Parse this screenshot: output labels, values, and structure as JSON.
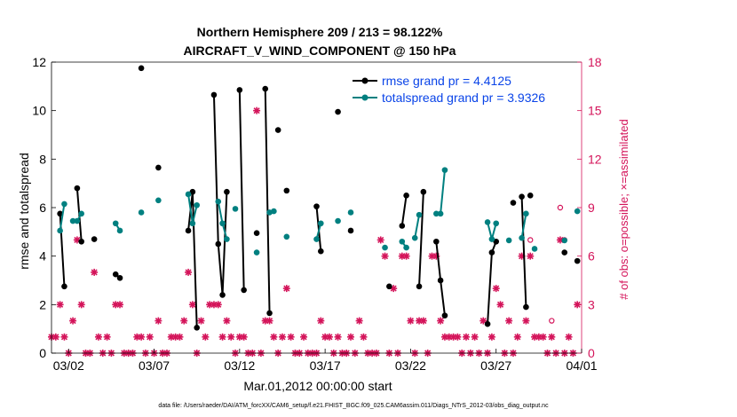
{
  "chart_data": {
    "type": "scatter",
    "title": "Northern Hemisphere 209 / 213 = 98.122%",
    "subtitle": "AIRCRAFT_V_WIND_COMPONENT @ 150 hPa",
    "xlabel": "Mar.01,2012 00:00:00 start",
    "ylabel": "rmse and totalspread",
    "y2label": "# of obs: o=possible; ×=assimilated",
    "footnote": "data file: /Users/raeder/DAI/ATM_forcXX/CAM6_setup/f.e21.FHIST_BGC.f09_025.CAM6assim.011/Diags_NTrS_2012-03/obs_diag_output.nc",
    "xlim": [
      0,
      31
    ],
    "ylim": [
      0,
      12
    ],
    "y2lim": [
      0,
      18
    ],
    "x_ticks": [
      {
        "value": 1,
        "label": "03/02"
      },
      {
        "value": 6,
        "label": "03/07"
      },
      {
        "value": 11,
        "label": "03/12"
      },
      {
        "value": 16,
        "label": "03/17"
      },
      {
        "value": 21,
        "label": "03/22"
      },
      {
        "value": 26,
        "label": "03/27"
      },
      {
        "value": 31,
        "label": "04/01"
      }
    ],
    "y_ticks": [
      0,
      2,
      4,
      6,
      8,
      10,
      12
    ],
    "y2_ticks": [
      0,
      3,
      6,
      9,
      12,
      15,
      18
    ],
    "grid": false,
    "legend_position": "top-right",
    "colors": {
      "rmse": "#000000",
      "spread": "#008080",
      "obs": "#d4145a"
    },
    "series": [
      {
        "name": "rmse grand pr = 4.4125",
        "segments": [
          [
            [
              0.5,
              5.75
            ],
            [
              0.75,
              2.75
            ]
          ],
          [
            [
              1.5,
              6.8
            ],
            [
              1.75,
              4.6
            ]
          ],
          [
            [
              2.5,
              4.7
            ]
          ],
          [
            [
              3.75,
              3.25
            ],
            [
              4.0,
              3.1
            ]
          ],
          [
            [
              5.25,
              11.75
            ]
          ],
          [
            [
              6.25,
              7.65
            ]
          ],
          [
            [
              8.0,
              5.05
            ],
            [
              8.25,
              6.65
            ],
            [
              8.5,
              1.05
            ]
          ],
          [
            [
              9.5,
              10.65
            ],
            [
              9.75,
              4.5
            ],
            [
              10.0,
              2.4
            ],
            [
              10.25,
              6.65
            ]
          ],
          [
            [
              11.0,
              10.85
            ],
            [
              11.25,
              2.6
            ]
          ],
          [
            [
              12.0,
              4.95
            ]
          ],
          [
            [
              12.5,
              10.9
            ],
            [
              12.75,
              1.65
            ]
          ],
          [
            [
              13.25,
              9.2
            ]
          ],
          [
            [
              13.75,
              6.7
            ]
          ],
          [
            [
              15.5,
              6.05
            ],
            [
              15.75,
              4.2
            ]
          ],
          [
            [
              16.75,
              9.95
            ]
          ],
          [
            [
              17.5,
              5.05
            ]
          ],
          [
            [
              19.75,
              2.75
            ]
          ],
          [
            [
              20.5,
              5.25
            ],
            [
              20.75,
              6.5
            ]
          ],
          [
            [
              21.5,
              2.75
            ],
            [
              21.75,
              6.65
            ]
          ],
          [
            [
              22.5,
              4.6
            ],
            [
              22.75,
              3.0
            ],
            [
              23.0,
              1.55
            ]
          ],
          [
            [
              25.5,
              1.2
            ],
            [
              25.75,
              4.15
            ],
            [
              26.0,
              4.6
            ]
          ],
          [
            [
              27.0,
              6.2
            ]
          ],
          [
            [
              27.5,
              6.45
            ],
            [
              27.75,
              1.9
            ]
          ],
          [
            [
              28.0,
              6.5
            ]
          ],
          [
            [
              30.0,
              4.15
            ]
          ],
          [
            [
              30.75,
              3.8
            ]
          ]
        ]
      },
      {
        "name": "totalspread grand pr = 3.9326",
        "segments": [
          [
            [
              0.5,
              5.05
            ],
            [
              0.75,
              6.15
            ]
          ],
          [
            [
              1.25,
              5.45
            ],
            [
              1.5,
              5.45
            ],
            [
              1.75,
              5.75
            ]
          ],
          [
            [
              3.75,
              5.35
            ],
            [
              4.0,
              5.05
            ]
          ],
          [
            [
              5.25,
              5.8
            ]
          ],
          [
            [
              6.25,
              6.3
            ]
          ],
          [
            [
              8.0,
              6.55
            ],
            [
              8.25,
              5.35
            ],
            [
              8.5,
              6.1
            ]
          ],
          [
            [
              9.75,
              6.25
            ],
            [
              10.0,
              5.35
            ],
            [
              10.25,
              4.7
            ]
          ],
          [
            [
              10.75,
              5.95
            ]
          ],
          [
            [
              12.0,
              4.15
            ]
          ],
          [
            [
              12.75,
              5.8
            ],
            [
              13.0,
              5.85
            ]
          ],
          [
            [
              13.75,
              4.8
            ]
          ],
          [
            [
              15.5,
              4.7
            ],
            [
              15.75,
              5.35
            ]
          ],
          [
            [
              16.75,
              5.45
            ]
          ],
          [
            [
              17.5,
              5.8
            ]
          ],
          [
            [
              19.5,
              4.35
            ]
          ],
          [
            [
              20.5,
              4.6
            ],
            [
              20.75,
              4.35
            ]
          ],
          [
            [
              21.25,
              4.75
            ],
            [
              21.5,
              5.7
            ]
          ],
          [
            [
              22.5,
              5.75
            ],
            [
              22.75,
              5.75
            ],
            [
              23.0,
              7.55
            ]
          ],
          [
            [
              25.5,
              5.4
            ],
            [
              25.75,
              4.7
            ],
            [
              26.0,
              5.35
            ]
          ],
          [
            [
              26.75,
              4.65
            ]
          ],
          [
            [
              27.5,
              4.75
            ],
            [
              27.75,
              5.75
            ]
          ],
          [
            [
              28.25,
              4.3
            ]
          ],
          [
            [
              30.0,
              4.65
            ]
          ],
          [
            [
              30.75,
              5.85
            ]
          ]
        ]
      }
    ],
    "obs_assimilated": [
      [
        0.0,
        1
      ],
      [
        0.25,
        1
      ],
      [
        0.5,
        3
      ],
      [
        0.75,
        1
      ],
      [
        1.0,
        0
      ],
      [
        1.25,
        2
      ],
      [
        1.5,
        7
      ],
      [
        1.75,
        3
      ],
      [
        2.0,
        0
      ],
      [
        2.25,
        0
      ],
      [
        2.5,
        5
      ],
      [
        2.75,
        1
      ],
      [
        3.0,
        0
      ],
      [
        3.25,
        1
      ],
      [
        3.5,
        0
      ],
      [
        3.75,
        3
      ],
      [
        4.0,
        3
      ],
      [
        4.25,
        0
      ],
      [
        4.5,
        0
      ],
      [
        4.75,
        0
      ],
      [
        5.0,
        1
      ],
      [
        5.25,
        1
      ],
      [
        5.5,
        0
      ],
      [
        5.75,
        1
      ],
      [
        6.0,
        0
      ],
      [
        6.25,
        2
      ],
      [
        6.5,
        0
      ],
      [
        6.75,
        0
      ],
      [
        7.0,
        1
      ],
      [
        7.25,
        1
      ],
      [
        7.5,
        1
      ],
      [
        7.75,
        2
      ],
      [
        8.0,
        5
      ],
      [
        8.25,
        3
      ],
      [
        8.5,
        0
      ],
      [
        8.75,
        2
      ],
      [
        9.0,
        1
      ],
      [
        9.25,
        3
      ],
      [
        9.5,
        3
      ],
      [
        9.75,
        3
      ],
      [
        10.0,
        1
      ],
      [
        10.25,
        2
      ],
      [
        10.5,
        1
      ],
      [
        10.75,
        0
      ],
      [
        11.0,
        1
      ],
      [
        11.25,
        1
      ],
      [
        11.5,
        0
      ],
      [
        11.75,
        0
      ],
      [
        12.0,
        15
      ],
      [
        12.25,
        0
      ],
      [
        12.5,
        2
      ],
      [
        12.75,
        2
      ],
      [
        13.0,
        1
      ],
      [
        13.25,
        0
      ],
      [
        13.5,
        1
      ],
      [
        13.75,
        4
      ],
      [
        14.0,
        1
      ],
      [
        14.25,
        0
      ],
      [
        14.5,
        0
      ],
      [
        14.75,
        1
      ],
      [
        15.0,
        0
      ],
      [
        15.25,
        0
      ],
      [
        15.5,
        0
      ],
      [
        15.75,
        2
      ],
      [
        16.0,
        1
      ],
      [
        16.25,
        1
      ],
      [
        16.5,
        0
      ],
      [
        16.75,
        1
      ],
      [
        17.0,
        0
      ],
      [
        17.25,
        0
      ],
      [
        17.5,
        1
      ],
      [
        17.75,
        0
      ],
      [
        18.0,
        2
      ],
      [
        18.25,
        1
      ],
      [
        18.5,
        0
      ],
      [
        18.75,
        0
      ],
      [
        19.0,
        0
      ],
      [
        19.25,
        7
      ],
      [
        19.5,
        6
      ],
      [
        19.75,
        0
      ],
      [
        20.0,
        4
      ],
      [
        20.25,
        0
      ],
      [
        20.5,
        6
      ],
      [
        20.75,
        6
      ],
      [
        21.0,
        2
      ],
      [
        21.25,
        0
      ],
      [
        21.5,
        2
      ],
      [
        21.75,
        2
      ],
      [
        22.0,
        0
      ],
      [
        22.25,
        6
      ],
      [
        22.5,
        6
      ],
      [
        22.75,
        2
      ],
      [
        23.0,
        1
      ],
      [
        23.25,
        1
      ],
      [
        23.5,
        1
      ],
      [
        23.75,
        1
      ],
      [
        24.0,
        0
      ],
      [
        24.25,
        1
      ],
      [
        24.5,
        0
      ],
      [
        24.75,
        1
      ],
      [
        25.0,
        0
      ],
      [
        25.25,
        2
      ],
      [
        25.5,
        0
      ],
      [
        25.75,
        1
      ],
      [
        26.0,
        4
      ],
      [
        26.25,
        3
      ],
      [
        26.5,
        0
      ],
      [
        26.75,
        2
      ],
      [
        27.0,
        0
      ],
      [
        27.25,
        1
      ],
      [
        27.5,
        6
      ],
      [
        27.75,
        2
      ],
      [
        28.0,
        6
      ],
      [
        28.25,
        1
      ],
      [
        28.5,
        1
      ],
      [
        28.75,
        1
      ],
      [
        29.0,
        0
      ],
      [
        29.25,
        1
      ],
      [
        29.5,
        0
      ],
      [
        29.75,
        7
      ],
      [
        30.0,
        0
      ],
      [
        30.25,
        1
      ],
      [
        30.5,
        0
      ],
      [
        30.75,
        3
      ]
    ],
    "obs_possible": [
      [
        28.0,
        7
      ],
      [
        29.25,
        2
      ],
      [
        29.75,
        9
      ],
      [
        30.0,
        7
      ]
    ]
  }
}
